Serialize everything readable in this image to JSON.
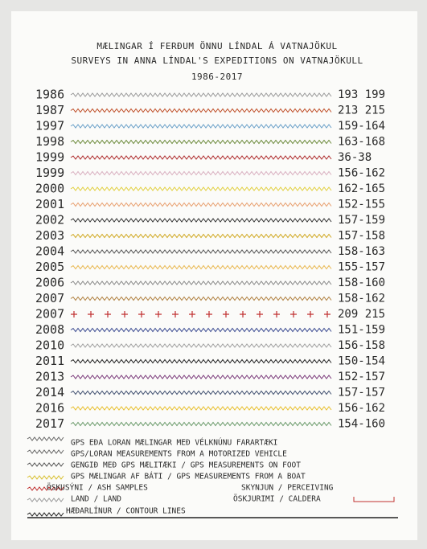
{
  "header": {
    "title_is": "MÆLINGAR Í FERÐUM ÖNNU LÍNDAL Á VATNAJÖKUL",
    "title_en": "SURVEYS IN ANNA LÍNDAL'S EXPEDITIONS ON VATNAJÖKULL",
    "years": "1986-2017"
  },
  "rows": [
    {
      "year": "1986",
      "range": "193 199"
    },
    {
      "year": "1987",
      "range": "213 215"
    },
    {
      "year": "1997",
      "range": "159-164"
    },
    {
      "year": "1998",
      "range": "163-168"
    },
    {
      "year": "1999",
      "range": "36-38"
    },
    {
      "year": "1999",
      "range": "156-162"
    },
    {
      "year": "2000",
      "range": "162-165"
    },
    {
      "year": "2001",
      "range": "152-155"
    },
    {
      "year": "2002",
      "range": "157-159"
    },
    {
      "year": "2003",
      "range": "157-158"
    },
    {
      "year": "2004",
      "range": "158-163"
    },
    {
      "year": "2005",
      "range": "155-157"
    },
    {
      "year": "2006",
      "range": "158-160"
    },
    {
      "year": "2007",
      "range": "158-162"
    },
    {
      "year": "2007",
      "range": "209 215"
    },
    {
      "year": "2008",
      "range": "151-159"
    },
    {
      "year": "2010",
      "range": "156-158"
    },
    {
      "year": "2011",
      "range": "150-154"
    },
    {
      "year": "2013",
      "range": "152-157"
    },
    {
      "year": "2014",
      "range": "157-157"
    },
    {
      "year": "2016",
      "range": "156-162"
    },
    {
      "year": "2017",
      "range": "154-160"
    }
  ],
  "legend": [
    "GPS EÐA LORAN MÆLINGAR MEÐ VÉLKNÚNU FARARTÆKI",
    "GPS/LORAN MEASUREMENTS FROM A MOTORIZED VEHICLE",
    "GENGIÐ MEÐ GPS MÆLITÆKI / GPS MEASUREMENTS ON FOOT",
    "GPS MÆLINGAR AF BÁTI / GPS MEASUREMENTS FROM A BOAT",
    "ÖSKUSÝNI / ASH SAMPLES",
    "SKYNJUN / PERCEIVING",
    "LAND / LAND",
    "ÖSKJURIMI / CALDERA",
    "HÆÐARLÍNUR / CONTOUR LINES"
  ]
}
